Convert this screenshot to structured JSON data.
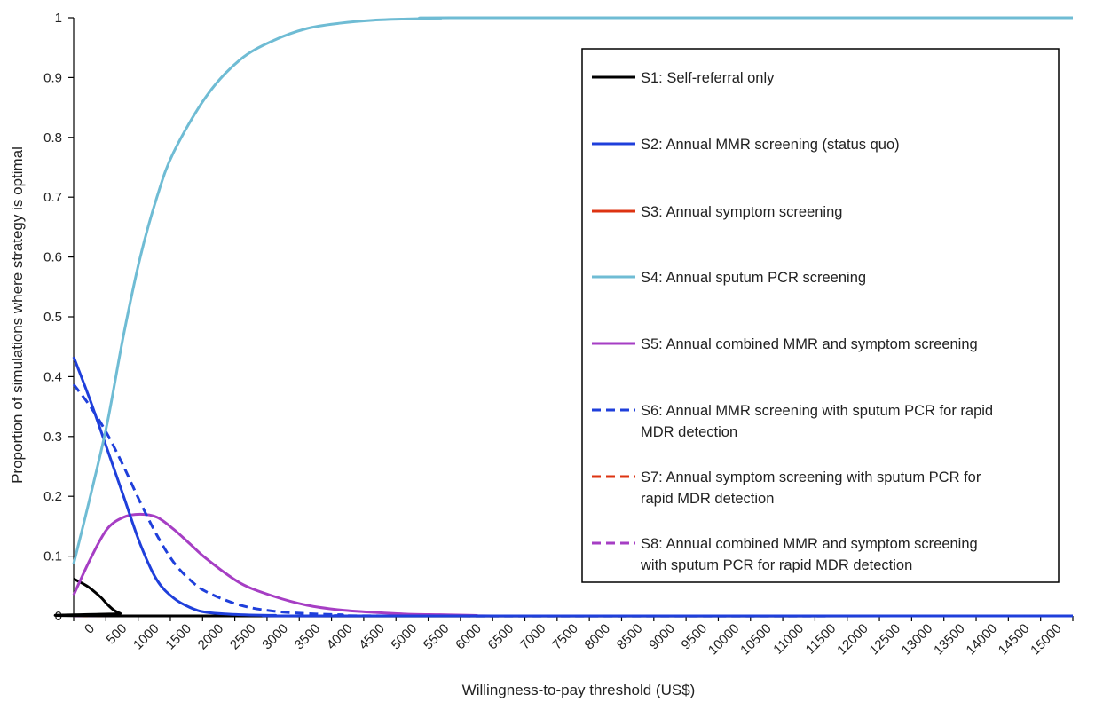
{
  "chart_data": {
    "type": "line",
    "title": "",
    "xlabel": "Willingness-to-pay threshold (US$)",
    "ylabel": "Proportion of simulations where strategy is optimal",
    "xlim": [
      0,
      15000
    ],
    "ylim": [
      0,
      1
    ],
    "x_ticks": [
      "0",
      "500",
      "1000",
      "1500",
      "2000",
      "2500",
      "3000",
      "3500",
      "4000",
      "4500",
      "5000",
      "5500",
      "6000",
      "6500",
      "7000",
      "7500",
      "8000",
      "8500",
      "9000",
      "9500",
      "10000",
      "10500",
      "11000",
      "11500",
      "12000",
      "12500",
      "13000",
      "13500",
      "14000",
      "14500",
      "15000"
    ],
    "y_ticks": [
      "0",
      "0.1",
      "0.2",
      "0.3",
      "0.4",
      "0.5",
      "0.6",
      "0.7",
      "0.8",
      "0.9",
      "1"
    ],
    "grid": false,
    "legend_position": "right",
    "series": [
      {
        "name": "S1: Self-referral only",
        "color": "#000000",
        "dash": false,
        "points": [
          [
            0,
            0.062
          ],
          [
            200,
            0.05
          ],
          [
            400,
            0.032
          ],
          [
            500,
            0.02
          ],
          [
            600,
            0.01
          ],
          [
            700,
            0.004
          ],
          [
            800,
            0.0
          ],
          [
            15000,
            0.0
          ]
        ]
      },
      {
        "name": "S2: Annual MMR screening (status quo)",
        "color": "#1f3fdb",
        "dash": false,
        "points": [
          [
            0,
            0.433
          ],
          [
            250,
            0.36
          ],
          [
            500,
            0.28
          ],
          [
            750,
            0.2
          ],
          [
            1000,
            0.12
          ],
          [
            1250,
            0.06
          ],
          [
            1500,
            0.03
          ],
          [
            1750,
            0.014
          ],
          [
            2000,
            0.006
          ],
          [
            2500,
            0.002
          ],
          [
            3000,
            0.001
          ],
          [
            4000,
            0.0
          ],
          [
            15000,
            0.0
          ]
        ]
      },
      {
        "name": "S3: Annual symptom screening",
        "color": "#dd3311",
        "dash": false,
        "points": [
          [
            0,
            0.0
          ],
          [
            15000,
            0.0
          ]
        ]
      },
      {
        "name": "S4: Annual sputum PCR screening",
        "color": "#6fbcd4",
        "dash": false,
        "points": [
          [
            0,
            0.087
          ],
          [
            250,
            0.2
          ],
          [
            500,
            0.32
          ],
          [
            750,
            0.47
          ],
          [
            1000,
            0.6
          ],
          [
            1250,
            0.7
          ],
          [
            1500,
            0.775
          ],
          [
            2000,
            0.87
          ],
          [
            2500,
            0.93
          ],
          [
            3000,
            0.962
          ],
          [
            3500,
            0.982
          ],
          [
            4000,
            0.991
          ],
          [
            4500,
            0.996
          ],
          [
            5000,
            0.998
          ],
          [
            5500,
            0.999
          ],
          [
            6000,
            1.0
          ],
          [
            15000,
            1.0
          ]
        ]
      },
      {
        "name": "S5: Annual combined MMR and symptom screening",
        "color": "#a63ec4",
        "dash": false,
        "points": [
          [
            0,
            0.035
          ],
          [
            250,
            0.095
          ],
          [
            500,
            0.145
          ],
          [
            750,
            0.165
          ],
          [
            1000,
            0.17
          ],
          [
            1250,
            0.165
          ],
          [
            1500,
            0.145
          ],
          [
            1750,
            0.12
          ],
          [
            2000,
            0.095
          ],
          [
            2500,
            0.055
          ],
          [
            3000,
            0.033
          ],
          [
            3500,
            0.018
          ],
          [
            4000,
            0.01
          ],
          [
            4500,
            0.006
          ],
          [
            5000,
            0.003
          ],
          [
            5500,
            0.002
          ],
          [
            6000,
            0.001
          ],
          [
            7000,
            0.0
          ],
          [
            15000,
            0.0
          ]
        ]
      },
      {
        "name": "S6: Annual MMR screening with sputum PCR for rapid MDR detection",
        "color": "#1f3fdb",
        "dash": true,
        "points": [
          [
            0,
            0.387
          ],
          [
            250,
            0.35
          ],
          [
            500,
            0.305
          ],
          [
            750,
            0.25
          ],
          [
            1000,
            0.19
          ],
          [
            1250,
            0.135
          ],
          [
            1500,
            0.09
          ],
          [
            1750,
            0.06
          ],
          [
            2000,
            0.04
          ],
          [
            2500,
            0.018
          ],
          [
            3000,
            0.008
          ],
          [
            3500,
            0.004
          ],
          [
            4000,
            0.002
          ],
          [
            5000,
            0.0
          ],
          [
            15000,
            0.0
          ]
        ]
      },
      {
        "name": "S7: Annual symptom screening with sputum PCR for rapid MDR detection",
        "color": "#dd3311",
        "dash": true,
        "points": [
          [
            0,
            0.0
          ],
          [
            15000,
            0.0
          ]
        ]
      },
      {
        "name": "S8: Annual combined MMR and symptom screening with sputum PCR for rapid MDR detection",
        "color": "#a63ec4",
        "dash": true,
        "points": [
          [
            0,
            0.0
          ],
          [
            15000,
            0.0
          ]
        ]
      }
    ]
  },
  "legend": {
    "entries": [
      {
        "lines": [
          "S1: Self-referral only"
        ]
      },
      {
        "lines": [
          "S2: Annual MMR screening (status quo)"
        ]
      },
      {
        "lines": [
          "S3: Annual symptom screening"
        ]
      },
      {
        "lines": [
          "S4: Annual sputum PCR screening"
        ]
      },
      {
        "lines": [
          "S5: Annual combined MMR and symptom screening"
        ]
      },
      {
        "lines": [
          "S6: Annual MMR screening with sputum PCR for rapid",
          "MDR detection"
        ]
      },
      {
        "lines": [
          "S7: Annual symptom screening with sputum PCR for",
          "rapid MDR detection"
        ]
      },
      {
        "lines": [
          "S8: Annual combined MMR and symptom screening",
          "with sputum PCR for rapid MDR detection"
        ]
      }
    ]
  }
}
